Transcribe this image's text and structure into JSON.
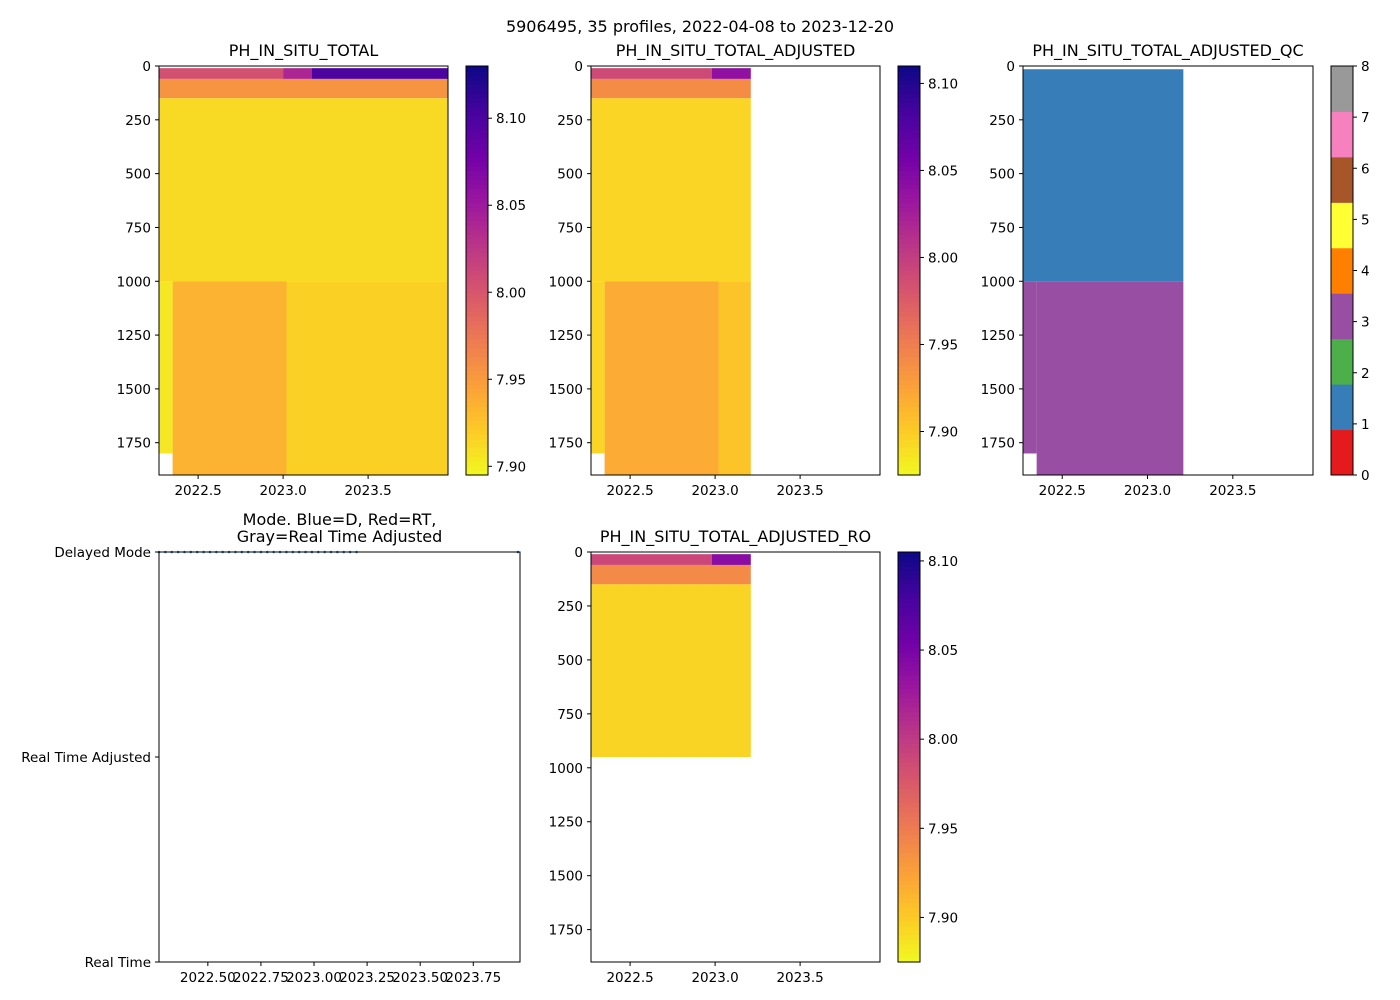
{
  "figure_title": "5906495, 35 profiles, 2022-04-08 to 2023-12-20",
  "colors": {
    "plasma": [
      "#f0f921",
      "#fdca26",
      "#fb9f3a",
      "#ed7953",
      "#d8576b",
      "#bd3786",
      "#9c179e",
      "#7201a8",
      "#46039f",
      "#0d0887"
    ],
    "qc": [
      "#e41a1c",
      "#377eb8",
      "#4daf4a",
      "#984ea3",
      "#ff7f00",
      "#ffff33",
      "#a65628",
      "#f781bf",
      "#999999"
    ],
    "mode_blue": "#1f77b4"
  },
  "chart_data": [
    {
      "id": "ph_total",
      "type": "heatmap",
      "title": "PH_IN_SITU_TOTAL",
      "xlim": [
        2022.27,
        2023.97
      ],
      "ylim": [
        1900,
        0
      ],
      "xticks": [
        2022.5,
        2023.0,
        2023.5
      ],
      "xtick_labels": [
        "2022.5",
        "2023.0",
        "2023.5"
      ],
      "yticks": [
        0,
        250,
        500,
        750,
        1000,
        1250,
        1500,
        1750
      ],
      "ytick_labels": [
        "0",
        "250",
        "500",
        "750",
        "1000",
        "1250",
        "1500",
        "1750"
      ],
      "colorbar": {
        "vmin": 7.895,
        "vmax": 8.13,
        "ticks": [
          7.9,
          7.95,
          8.0,
          8.05,
          8.1
        ],
        "tick_labels": [
          "7.90",
          "7.95",
          "8.00",
          "8.05",
          "8.10"
        ]
      },
      "cells": [
        {
          "t0": 2022.27,
          "t1": 2023.0,
          "p0": 10,
          "p1": 60,
          "v": 8.005
        },
        {
          "t0": 2023.0,
          "t1": 2023.17,
          "p0": 10,
          "p1": 60,
          "v": 8.04
        },
        {
          "t0": 2023.17,
          "t1": 2023.97,
          "p0": 10,
          "p1": 60,
          "v": 8.1
        },
        {
          "t0": 2022.27,
          "t1": 2023.97,
          "p0": 60,
          "p1": 150,
          "v": 7.955
        },
        {
          "t0": 2022.27,
          "t1": 2023.97,
          "p0": 150,
          "p1": 1000,
          "v": 7.912
        },
        {
          "t0": 2022.35,
          "t1": 2023.02,
          "p0": 1000,
          "p1": 1900,
          "v": 7.935
        },
        {
          "t0": 2023.02,
          "t1": 2023.97,
          "p0": 1000,
          "p1": 1900,
          "v": 7.918
        },
        {
          "t0": 2022.27,
          "t1": 2022.35,
          "p0": 1000,
          "p1": 1800,
          "v": 7.905
        }
      ]
    },
    {
      "id": "ph_adjusted",
      "type": "heatmap",
      "title": "PH_IN_SITU_TOTAL_ADJUSTED",
      "xlim": [
        2022.27,
        2023.97
      ],
      "ylim": [
        1900,
        0
      ],
      "xticks": [
        2022.5,
        2023.0,
        2023.5
      ],
      "xtick_labels": [
        "2022.5",
        "2023.0",
        "2023.5"
      ],
      "yticks": [
        0,
        250,
        500,
        750,
        1000,
        1250,
        1500,
        1750
      ],
      "ytick_labels": [
        "0",
        "250",
        "500",
        "750",
        "1000",
        "1250",
        "1500",
        "1750"
      ],
      "colorbar": {
        "vmin": 7.875,
        "vmax": 8.11,
        "ticks": [
          7.9,
          7.95,
          8.0,
          8.05,
          8.1
        ],
        "tick_labels": [
          "7.90",
          "7.95",
          "8.00",
          "8.05",
          "8.10"
        ]
      },
      "cells": [
        {
          "t0": 2022.27,
          "t1": 2022.98,
          "p0": 10,
          "p1": 60,
          "v": 7.99
        },
        {
          "t0": 2022.98,
          "t1": 2023.21,
          "p0": 10,
          "p1": 60,
          "v": 8.04
        },
        {
          "t0": 2022.27,
          "t1": 2023.21,
          "p0": 60,
          "p1": 150,
          "v": 7.94
        },
        {
          "t0": 2022.27,
          "t1": 2023.21,
          "p0": 150,
          "p1": 1000,
          "v": 7.895
        },
        {
          "t0": 2022.35,
          "t1": 2023.02,
          "p0": 1000,
          "p1": 1900,
          "v": 7.92
        },
        {
          "t0": 2023.02,
          "t1": 2023.21,
          "p0": 1000,
          "p1": 1900,
          "v": 7.905
        },
        {
          "t0": 2022.27,
          "t1": 2022.35,
          "p0": 1000,
          "p1": 1800,
          "v": 7.895
        }
      ]
    },
    {
      "id": "ph_adjusted_qc",
      "type": "heatmap",
      "title": "PH_IN_SITU_TOTAL_ADJUSTED_QC",
      "xlim": [
        2022.27,
        2023.97
      ],
      "ylim": [
        1900,
        0
      ],
      "xticks": [
        2022.5,
        2023.0,
        2023.5
      ],
      "xtick_labels": [
        "2022.5",
        "2023.0",
        "2023.5"
      ],
      "yticks": [
        0,
        250,
        500,
        750,
        1000,
        1250,
        1500,
        1750
      ],
      "ytick_labels": [
        "0",
        "250",
        "500",
        "750",
        "1000",
        "1250",
        "1500",
        "1750"
      ],
      "colorbar": {
        "discrete": true,
        "vmin": 0,
        "vmax": 8,
        "ticks": [
          0,
          1,
          2,
          3,
          4,
          5,
          6,
          7,
          8
        ],
        "tick_labels": [
          "0",
          "1",
          "2",
          "3",
          "4",
          "5",
          "6",
          "7",
          "8"
        ]
      },
      "cells": [
        {
          "t0": 2022.27,
          "t1": 2023.21,
          "p0": 15,
          "p1": 1000,
          "v": 1
        },
        {
          "t0": 2022.35,
          "t1": 2023.21,
          "p0": 1000,
          "p1": 1900,
          "v": 3
        },
        {
          "t0": 2022.27,
          "t1": 2022.35,
          "p0": 1000,
          "p1": 1800,
          "v": 3
        }
      ]
    },
    {
      "id": "mode",
      "type": "scatter",
      "title": "Mode. Blue=D, Red=RT,\nGray=Real Time Adjusted",
      "xlim": [
        2022.27,
        2023.97
      ],
      "ylim": [
        0,
        2
      ],
      "xticks": [
        2022.5,
        2022.75,
        2023.0,
        2023.25,
        2023.5,
        2023.75
      ],
      "xtick_labels": [
        "2022.50",
        "2022.75",
        "2023.00",
        "2023.25",
        "2023.50",
        "2023.75"
      ],
      "yticks": [
        2,
        1,
        0
      ],
      "ytick_labels": [
        "Delayed Mode",
        "Real Time Adjusted",
        "Real Time"
      ],
      "series": [
        {
          "name": "Delayed Mode",
          "y": 2,
          "x": [
            2022.27,
            2022.3,
            2022.33,
            2022.36,
            2022.39,
            2022.42,
            2022.45,
            2022.48,
            2022.51,
            2022.54,
            2022.57,
            2022.6,
            2022.63,
            2022.66,
            2022.69,
            2022.72,
            2022.75,
            2022.78,
            2022.81,
            2022.84,
            2022.87,
            2022.9,
            2022.93,
            2022.96,
            2022.99,
            2023.02,
            2023.05,
            2023.08,
            2023.11,
            2023.14,
            2023.17,
            2023.2,
            2023.96
          ]
        }
      ]
    },
    {
      "id": "ph_adjusted_ro",
      "type": "heatmap",
      "title": "PH_IN_SITU_TOTAL_ADJUSTED_RO",
      "xlim": [
        2022.27,
        2023.97
      ],
      "ylim": [
        1900,
        0
      ],
      "xticks": [
        2022.5,
        2023.0,
        2023.5
      ],
      "xtick_labels": [
        "2022.5",
        "2023.0",
        "2023.5"
      ],
      "yticks": [
        0,
        250,
        500,
        750,
        1000,
        1250,
        1500,
        1750
      ],
      "ytick_labels": [
        "0",
        "250",
        "500",
        "750",
        "1000",
        "1250",
        "1500",
        "1750"
      ],
      "colorbar": {
        "vmin": 7.875,
        "vmax": 8.105,
        "ticks": [
          7.9,
          7.95,
          8.0,
          8.05,
          8.1
        ],
        "tick_labels": [
          "7.90",
          "7.95",
          "8.00",
          "8.05",
          "8.10"
        ]
      },
      "cells": [
        {
          "t0": 2022.27,
          "t1": 2022.98,
          "p0": 10,
          "p1": 60,
          "v": 7.99
        },
        {
          "t0": 2022.98,
          "t1": 2023.21,
          "p0": 10,
          "p1": 60,
          "v": 8.04
        },
        {
          "t0": 2022.27,
          "t1": 2023.21,
          "p0": 60,
          "p1": 150,
          "v": 7.94
        },
        {
          "t0": 2022.27,
          "t1": 2023.21,
          "p0": 150,
          "p1": 950,
          "v": 7.895
        }
      ]
    }
  ]
}
